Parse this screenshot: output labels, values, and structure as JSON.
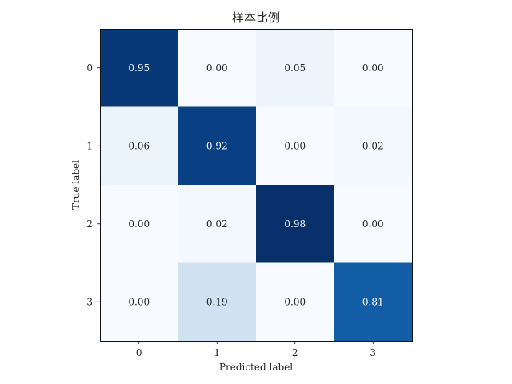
{
  "chart_data": {
    "type": "heatmap",
    "title": "样本比例",
    "xlabel": "Predicted label",
    "ylabel": "True label",
    "x_ticks": [
      "0",
      "1",
      "2",
      "3"
    ],
    "y_ticks": [
      "0",
      "1",
      "2",
      "3"
    ],
    "values": [
      [
        0.95,
        0.0,
        0.05,
        0.0
      ],
      [
        0.06,
        0.92,
        0.0,
        0.02
      ],
      [
        0.0,
        0.02,
        0.98,
        0.0
      ],
      [
        0.0,
        0.19,
        0.0,
        0.81
      ]
    ],
    "value_format": "0.00",
    "colormap": "Blues",
    "grid": false,
    "colors": {
      "low": "#f7fbff",
      "high": "#08306b",
      "text_light": "#ffffff",
      "text_dark": "#222222"
    }
  }
}
